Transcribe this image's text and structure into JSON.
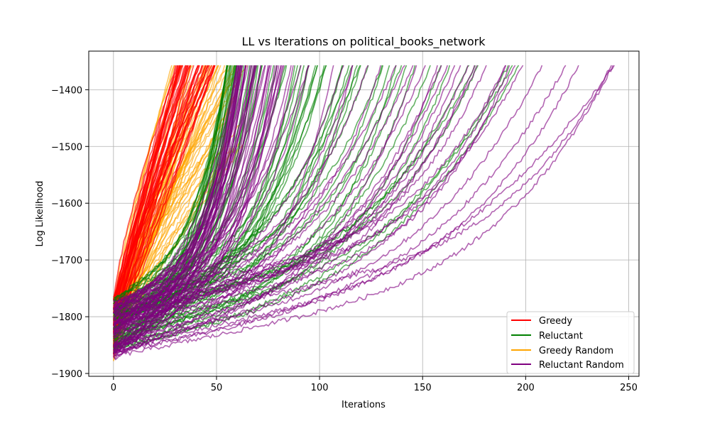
{
  "chart_data": {
    "type": "line",
    "title": "LL vs Iterations on political_books_network",
    "xlabel": "Iterations",
    "ylabel": "Log Likelihood",
    "xlim": [
      -12,
      255
    ],
    "ylim": [
      -1905,
      -1332
    ],
    "xticks": [
      0,
      50,
      100,
      150,
      200,
      250
    ],
    "yticks": [
      -1900,
      -1800,
      -1700,
      -1600,
      -1500,
      -1400
    ],
    "ytick_labels": [
      "−1900",
      "−1800",
      "−1700",
      "−1600",
      "−1500",
      "−1400"
    ],
    "grid": true,
    "legend_position": "bottom-right",
    "series": [
      {
        "name": "Greedy",
        "color": "#ff0000",
        "runs": 45,
        "start_range": [
          -1870,
          -1765
        ],
        "end_iter_range": [
          30,
          50
        ],
        "final_ll": -1357,
        "alpha": 0.65
      },
      {
        "name": "Greedy Random",
        "color": "#ffa500",
        "runs": 60,
        "start_range": [
          -1875,
          -1770
        ],
        "end_iter_range": [
          28,
          65
        ],
        "final_ll_range": [
          -1520,
          -1357
        ],
        "alpha": 0.6
      },
      {
        "name": "Reluctant",
        "color": "#008000",
        "runs": 70,
        "start_range": [
          -1860,
          -1765
        ],
        "end_iter_range": [
          55,
          200
        ],
        "final_ll": -1357,
        "alpha": 0.6
      },
      {
        "name": "Reluctant Random",
        "color": "#800080",
        "runs": 80,
        "start_range": [
          -1875,
          -1770
        ],
        "end_iter_range": [
          60,
          245
        ],
        "final_ll": -1357,
        "alpha": 0.6
      }
    ]
  }
}
